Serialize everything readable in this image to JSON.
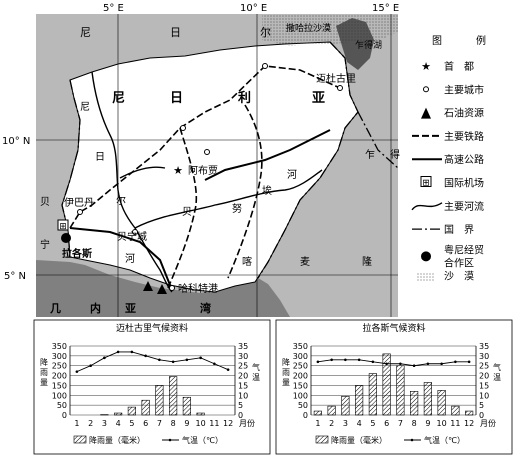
{
  "map": {
    "lon_labels": [
      "5° E",
      "10° E",
      "15° E"
    ],
    "lat_labels": [
      "10° N",
      "5° N"
    ],
    "region_labels": {
      "niger": [
        "尼",
        "日",
        "尔"
      ],
      "nigeria": [
        "尼",
        "日",
        "利",
        "亚"
      ],
      "chad_lake": "乍得湖",
      "chad": [
        "乍",
        "得"
      ],
      "cameroon": [
        "喀",
        "麦",
        "隆"
      ],
      "benin": [
        "贝",
        "宁"
      ],
      "gulf": [
        "几",
        "内",
        "亚",
        "湾"
      ],
      "rivers": [
        "尼",
        "日",
        "尔",
        "河"
      ],
      "benue": [
        "贝",
        "努",
        "埃",
        "河"
      ],
      "sahara_text": "撒哈拉沙漠"
    },
    "cities": {
      "abuja": "阿布贾",
      "lagos": "拉各斯",
      "ibadan": "伊巴丹",
      "benin_city": "贝宁城",
      "port_harcourt": "哈科特港",
      "maiduguri": "迈杜古里"
    }
  },
  "legend": {
    "title": [
      "图",
      "例"
    ],
    "items": [
      {
        "icon": "star-icon",
        "label": "首　都"
      },
      {
        "icon": "city-icon",
        "label": "主要城市"
      },
      {
        "icon": "oil-icon",
        "label": "石油资源"
      },
      {
        "icon": "railway-icon",
        "label": "主要铁路"
      },
      {
        "icon": "highway-icon",
        "label": "高速公路"
      },
      {
        "icon": "airport-icon",
        "label": "国际机场"
      },
      {
        "icon": "river-icon",
        "label": "主要河流"
      },
      {
        "icon": "border-icon",
        "label": "国　界"
      },
      {
        "icon": "zone-icon",
        "label": "粤尼经贸合作区"
      },
      {
        "icon": "desert-icon",
        "label": "沙　漠"
      }
    ]
  },
  "chart_data": [
    {
      "type": "bar",
      "title": "迈杜古里气候资料",
      "categories": [
        "1",
        "2",
        "3",
        "4",
        "5",
        "6",
        "7",
        "8",
        "9",
        "10",
        "11",
        "12"
      ],
      "series": [
        {
          "name": "降雨量（毫米）",
          "type": "bar",
          "values": [
            0,
            0,
            2,
            10,
            40,
            75,
            150,
            195,
            90,
            10,
            0,
            0
          ]
        },
        {
          "name": "气温（℃）",
          "type": "line",
          "values": [
            22,
            25,
            29,
            32,
            32,
            30,
            28,
            27,
            28,
            29,
            26,
            23
          ]
        }
      ],
      "y_left": {
        "label": "降雨量",
        "ylim": [
          0,
          350
        ],
        "ticks": [
          0,
          50,
          100,
          150,
          200,
          250,
          300,
          350
        ]
      },
      "y_right": {
        "label": "气温",
        "ylim": [
          0,
          35
        ],
        "ticks": [
          0,
          5,
          10,
          15,
          20,
          25,
          30,
          35
        ]
      },
      "xlabel": "月份",
      "grid": true
    },
    {
      "type": "bar",
      "title": "拉各斯气候资料",
      "categories": [
        "1",
        "2",
        "3",
        "4",
        "5",
        "6",
        "7",
        "8",
        "9",
        "10",
        "11",
        "12"
      ],
      "series": [
        {
          "name": "降雨量（毫米）",
          "type": "bar",
          "values": [
            20,
            45,
            95,
            150,
            210,
            310,
            250,
            120,
            165,
            125,
            45,
            20
          ]
        },
        {
          "name": "气温（℃）",
          "type": "line",
          "values": [
            27,
            28,
            28,
            28,
            27,
            26,
            26,
            25,
            26,
            26,
            27,
            27
          ]
        }
      ],
      "y_left": {
        "label": "降雨量",
        "ylim": [
          0,
          350
        ],
        "ticks": [
          0,
          50,
          100,
          150,
          200,
          250,
          300,
          350
        ]
      },
      "y_right": {
        "label": "气温",
        "ylim": [
          0,
          35
        ],
        "ticks": [
          0,
          5,
          10,
          15,
          20,
          25,
          30,
          35
        ]
      },
      "xlabel": "月份",
      "grid": true
    }
  ],
  "chart_legend": {
    "bar": "降雨量（毫米）",
    "line": "气温（℃）"
  },
  "colors": {
    "land_outside": "#b9b9b9",
    "sea": "#808080",
    "nigeria": "#ffffff",
    "lake": "#555555"
  }
}
